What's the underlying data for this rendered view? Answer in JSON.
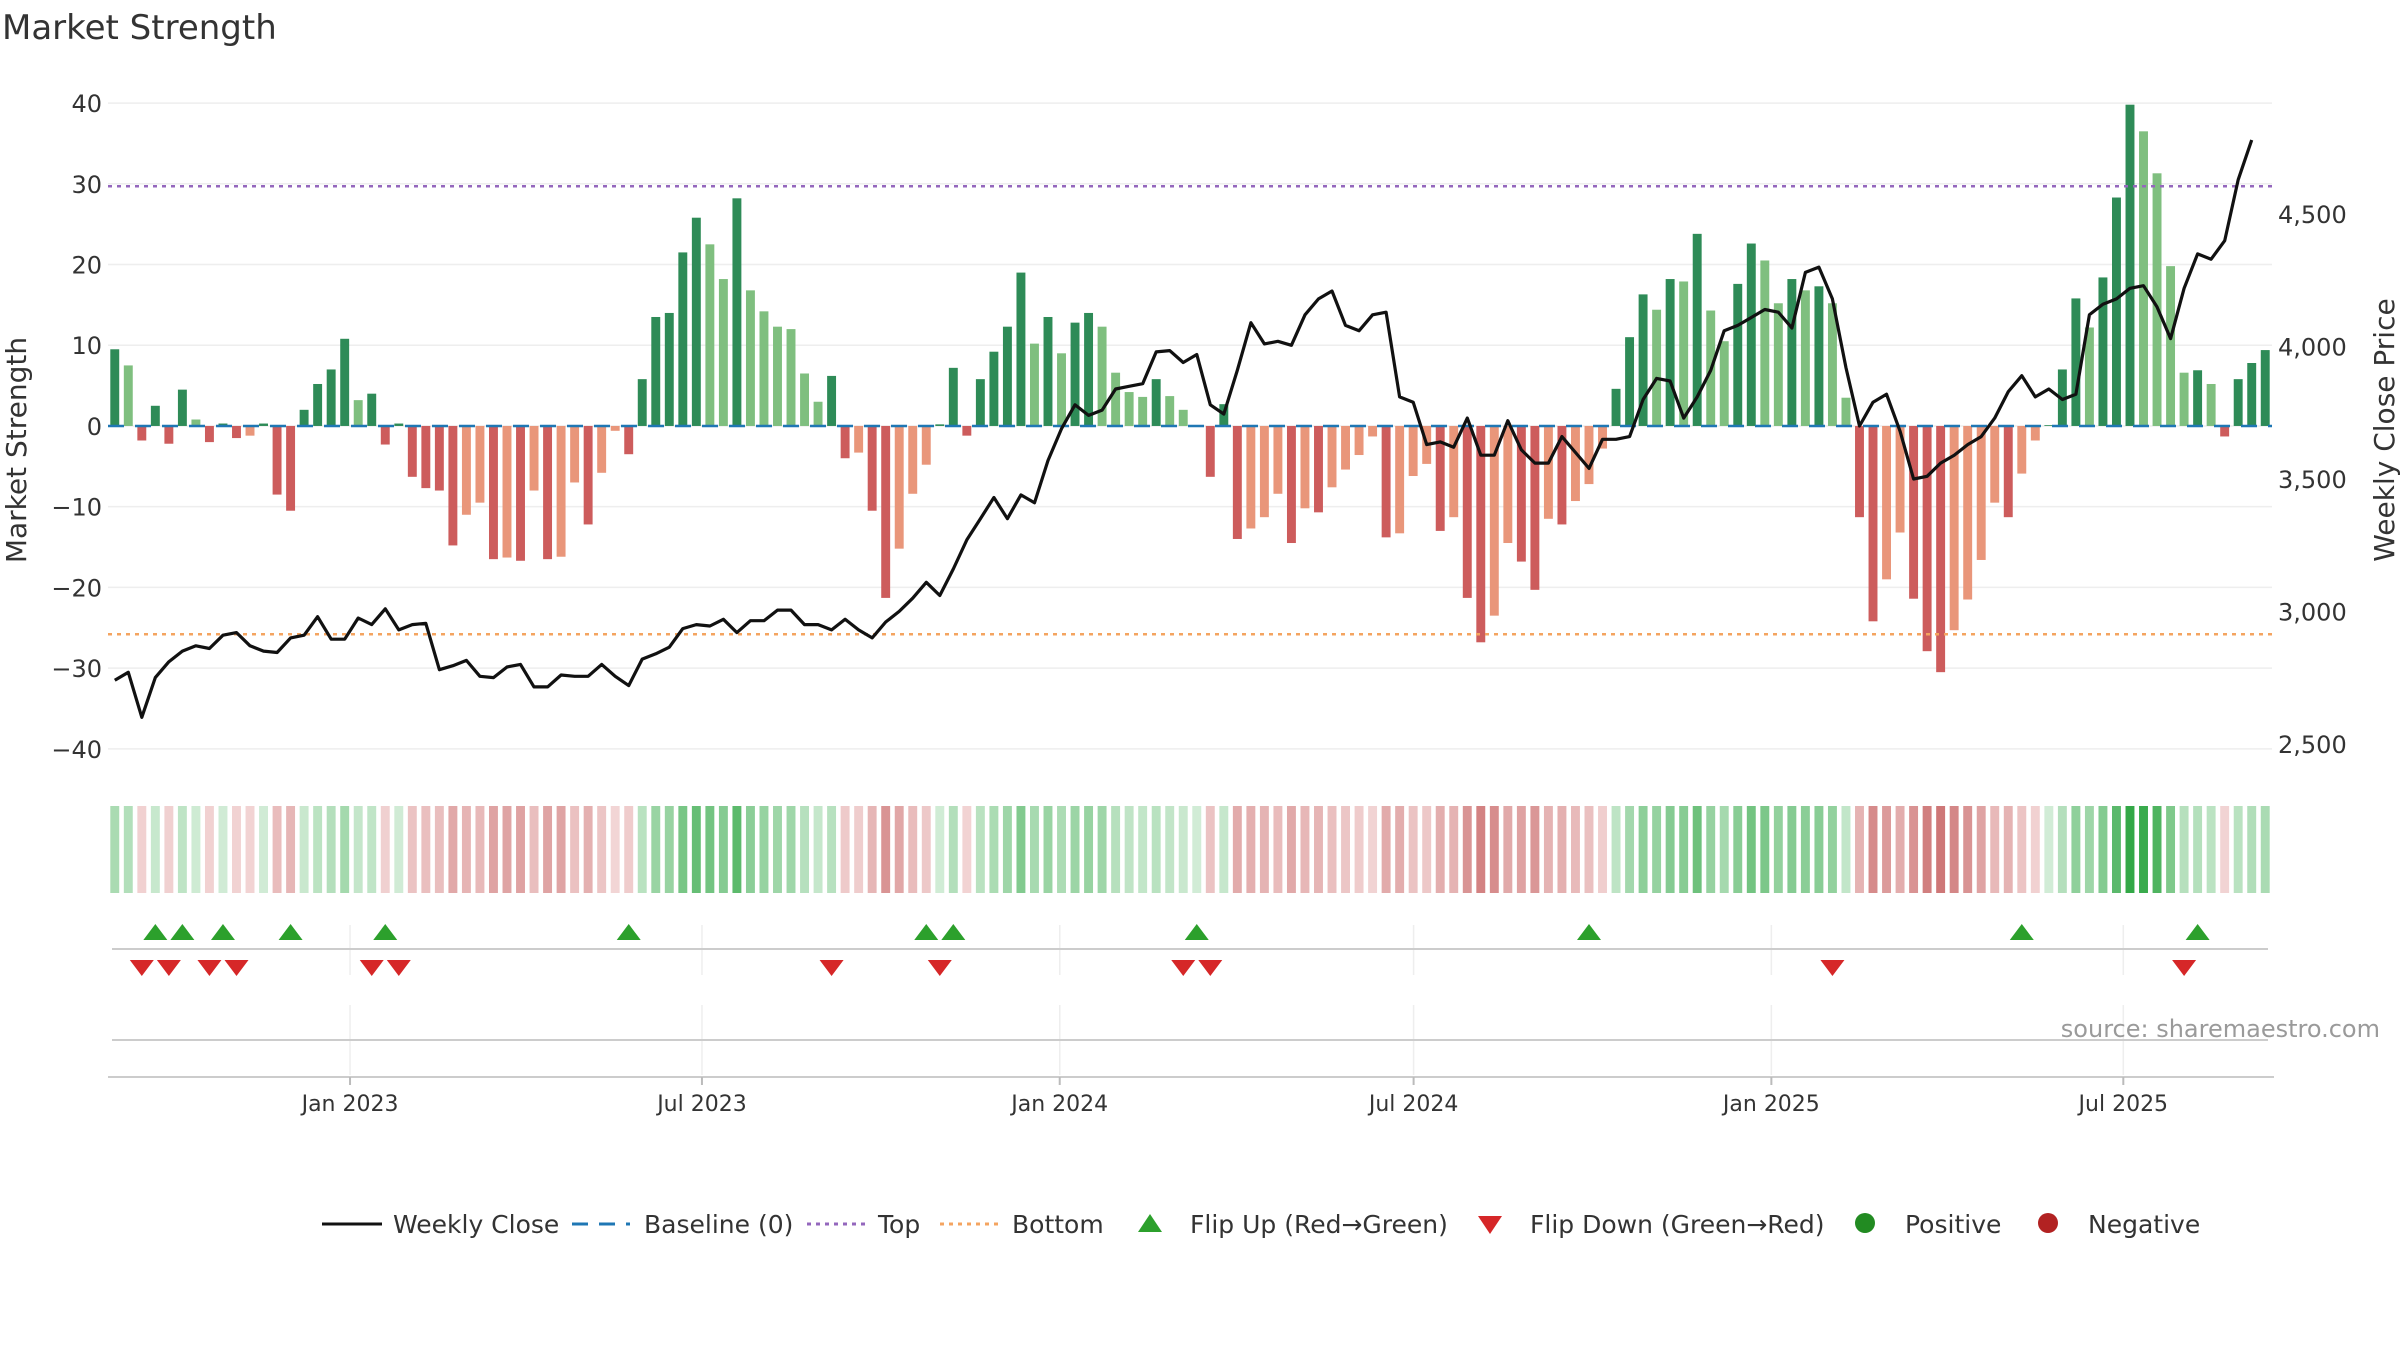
{
  "title": "Market Strength",
  "source": "source: sharemaestro.com",
  "colors": {
    "strong_green": "#2e8b57",
    "light_green": "#7fbf7f",
    "strong_red": "#cd5c5c",
    "light_red": "#e9967a",
    "price_line": "#111111",
    "baseline": "#1f77b4",
    "top": "#9467bd",
    "bottom": "#f4a460",
    "flip_up": "#2ca02c",
    "flip_down": "#d62728",
    "positive": "#228b22",
    "negative": "#b22222"
  },
  "chart_data": {
    "type": "bar",
    "title": "Market Strength",
    "ylabel": "Market Strength",
    "y2label": "Weekly Close Price",
    "ylim": [
      -42,
      41
    ],
    "y2lim": [
      2420,
      4950
    ],
    "yticks": [
      40,
      30,
      20,
      10,
      0,
      -10,
      -20,
      -30,
      -40
    ],
    "ytick_labels": [
      "40",
      "30",
      "20",
      "10",
      "0",
      "−10",
      "−20",
      "−30",
      "−40"
    ],
    "y2ticks": [
      4500,
      4000,
      3500,
      3000,
      2500
    ],
    "y2tick_labels": [
      "4,500",
      "4,000",
      "3,500",
      "3,000",
      "2,500"
    ],
    "x_start": "2022-09-02",
    "x_end": "2025-09-12",
    "xticks": [
      "2023-01-01",
      "2023-07-01",
      "2024-01-01",
      "2024-07-01",
      "2025-01-01",
      "2025-07-01"
    ],
    "xtick_labels": [
      "Jan 2023",
      "Jul 2023",
      "Jan 2024",
      "Jul 2024",
      "Jan 2025",
      "Jul 2025"
    ],
    "top_level": 29.7,
    "bottom_level": -25.8,
    "baseline_level": 0,
    "weeks": 157,
    "strength": [
      9.5,
      7.5,
      -1.8,
      2.5,
      -2.2,
      4.5,
      0.8,
      -2,
      0.3,
      -1.5,
      -1.2,
      0.3,
      -8.5,
      -10.5,
      2,
      5.2,
      7,
      10.8,
      3.2,
      4,
      -2.3,
      0.3,
      -6.3,
      -7.7,
      -8,
      -14.8,
      -11,
      -9.5,
      -16.5,
      -16.3,
      -16.7,
      -8,
      -16.5,
      -16.2,
      -7,
      -12.2,
      -5.8,
      -0.6,
      -3.5,
      5.8,
      13.5,
      14,
      21.5,
      25.8,
      22.5,
      18.2,
      28.2,
      16.8,
      14.2,
      12.3,
      12,
      6.5,
      3,
      6.2,
      -4,
      -3.3,
      -10.5,
      -21.3,
      -15.2,
      -8.4,
      -4.8,
      0.2,
      7.2,
      -1.2,
      5.8,
      9.2,
      12.3,
      19,
      10.2,
      13.5,
      9,
      12.8,
      14,
      12.3,
      6.6,
      4.2,
      3.6,
      5.8,
      3.7,
      2,
      0.1,
      -6.3,
      2.7,
      -14,
      -12.7,
      -11.3,
      -8.4,
      -14.5,
      -10.2,
      -10.7,
      -7.6,
      -5.4,
      -3.6,
      -1.3,
      -13.8,
      -13.3,
      -6.2,
      -4.7,
      -13,
      -11.3,
      -21.3,
      -26.8,
      -23.5,
      -14.5,
      -16.8,
      -20.3,
      -11.5,
      -12.2,
      -9.3,
      -7.2,
      -2.8,
      4.6,
      11,
      16.3,
      14.4,
      18.2,
      17.9,
      23.8,
      14.3,
      10.5,
      17.6,
      22.6,
      20.5,
      15.2,
      18.2,
      16.8,
      17.3,
      15.2,
      3.5,
      -11.3,
      -24.2,
      -19,
      -13.2,
      -21.4,
      -27.9,
      -30.5,
      -25.3,
      -21.5,
      -16.6,
      -9.5,
      -11.3,
      -5.9,
      -1.8,
      0.1,
      7,
      15.8,
      12.2,
      18.4,
      28.3,
      39.8,
      36.5,
      31.3,
      19.8,
      6.6,
      6.9,
      5.2,
      -1.3,
      5.8,
      7.8,
      9.4
    ],
    "price": [
      2740,
      2770,
      2600,
      2750,
      2810,
      2850,
      2870,
      2860,
      2910,
      2920,
      2870,
      2850,
      2845,
      2900,
      2910,
      2980,
      2895,
      2895,
      2975,
      2950,
      3010,
      2930,
      2950,
      2955,
      2780,
      2795,
      2815,
      2755,
      2750,
      2790,
      2800,
      2715,
      2715,
      2760,
      2755,
      2755,
      2800,
      2755,
      2720,
      2820,
      2840,
      2865,
      2935,
      2950,
      2945,
      2970,
      2920,
      2965,
      2965,
      3005,
      3005,
      2950,
      2950,
      2930,
      2970,
      2930,
      2900,
      2960,
      3000,
      3050,
      3110,
      3060,
      3160,
      3270,
      3350,
      3430,
      3350,
      3440,
      3410,
      3570,
      3690,
      3780,
      3740,
      3760,
      3840,
      3850,
      3860,
      3980,
      3985,
      3940,
      3970,
      3780,
      3745,
      3910,
      4090,
      4010,
      4020,
      4005,
      4120,
      4180,
      4210,
      4080,
      4060,
      4120,
      4130,
      3810,
      3790,
      3630,
      3640,
      3620,
      3730,
      3590,
      3590,
      3720,
      3610,
      3560,
      3560,
      3660,
      3600,
      3540,
      3650,
      3650,
      3660,
      3800,
      3880,
      3870,
      3730,
      3810,
      3910,
      4060,
      4080,
      4110,
      4140,
      4130,
      4070,
      4280,
      4300,
      4180,
      3920,
      3700,
      3790,
      3820,
      3680,
      3500,
      3510,
      3560,
      3590,
      3630,
      3660,
      3730,
      3830,
      3890,
      3810,
      3840,
      3800,
      3820,
      4120,
      4160,
      4180,
      4220,
      4230,
      4150,
      4030,
      4220,
      4350,
      4330,
      4400,
      4630,
      4780
    ],
    "flip_up_weeks": [
      3,
      5,
      8,
      13,
      20,
      38,
      60,
      62,
      80,
      109,
      141,
      154
    ],
    "flip_down_weeks": [
      2,
      4,
      7,
      9,
      19,
      21,
      53,
      61,
      79,
      81,
      127,
      153
    ],
    "legend": [
      "Weekly Close",
      "Baseline (0)",
      "Top",
      "Bottom",
      "Flip Up (Red→Green)",
      "Flip Down (Green→Red)",
      "Positive",
      "Negative"
    ]
  }
}
